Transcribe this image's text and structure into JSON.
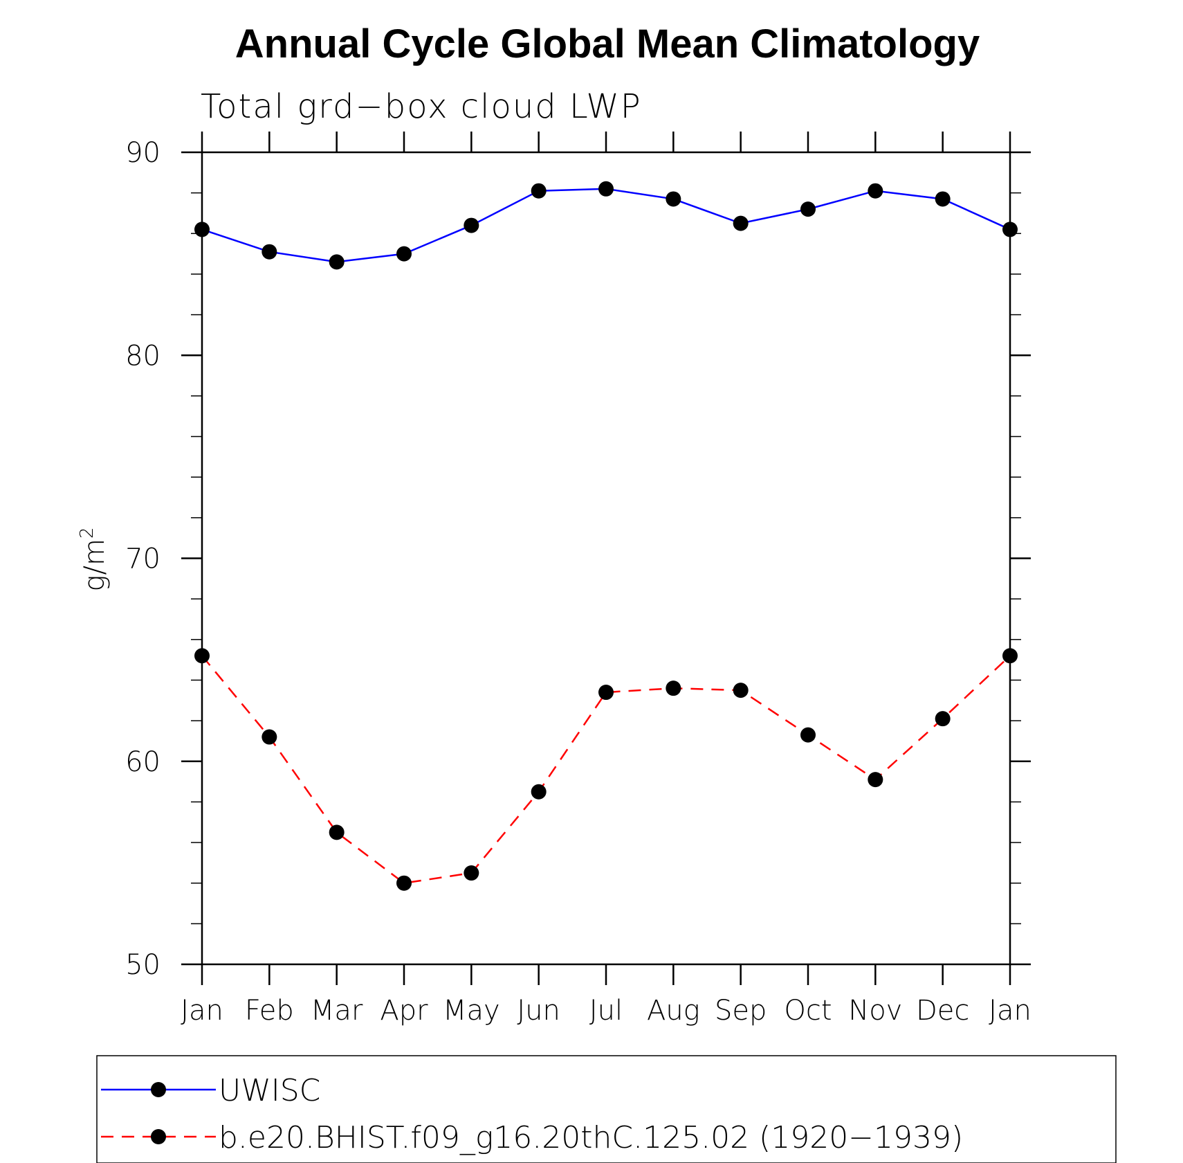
{
  "chart_data": {
    "type": "line",
    "title": "Annual Cycle Global Mean Climatology",
    "subtitle": "Total grd−box cloud LWP",
    "xlabel": "",
    "ylabel": "g/m",
    "ylabel_superscript": "2",
    "categories": [
      "Jan",
      "Feb",
      "Mar",
      "Apr",
      "May",
      "Jun",
      "Jul",
      "Aug",
      "Sep",
      "Oct",
      "Nov",
      "Dec",
      "Jan"
    ],
    "ylim": [
      50,
      90
    ],
    "y_ticks": [
      50,
      60,
      70,
      80,
      90
    ],
    "y_minor_step": 2,
    "grid": false,
    "legend_position": "bottom",
    "series": [
      {
        "name": "UWISC",
        "color": "#0000ff",
        "line_style": "solid",
        "marker": "filled-circle",
        "values": [
          86.2,
          85.1,
          84.6,
          85.0,
          86.4,
          88.1,
          88.2,
          87.7,
          86.5,
          87.2,
          88.1,
          87.7,
          86.2
        ]
      },
      {
        "name": "b.e20.BHIST.f09_g16.20thC.125.02 (1920−1939)",
        "color": "#ff0000",
        "line_style": "dashed",
        "marker": "filled-circle",
        "values": [
          65.2,
          61.2,
          56.5,
          54.0,
          54.5,
          58.5,
          63.4,
          63.6,
          63.5,
          61.3,
          59.1,
          62.1,
          65.2
        ]
      }
    ]
  }
}
